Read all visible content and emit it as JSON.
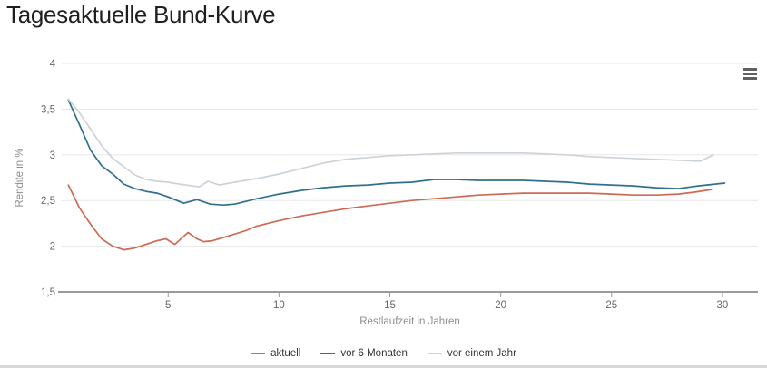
{
  "page": {
    "title": "Tagesaktuelle Bund-Kurve"
  },
  "icons": {
    "context_menu": "hamburger-icon"
  },
  "colors": {
    "title_text": "#1f1f1f",
    "grid": "#e7e7e7",
    "axis_line": "#9b9b9b",
    "tick_text": "#666666",
    "axis_title_text": "#8d8d8d",
    "legend_text": "#333333",
    "menu_icon": "#616161",
    "divider": "#d8d8d8"
  },
  "chart_data": {
    "type": "line",
    "title": "",
    "xlabel": "Restlaufzeit in Jahren",
    "ylabel": "Rendite in %",
    "xlim": [
      0.2,
      31.6
    ],
    "ylim": [
      1.5,
      4
    ],
    "x_ticks": [
      5,
      10,
      15,
      20,
      25,
      30
    ],
    "x_tick_labels": [
      "5",
      "10",
      "15",
      "20",
      "25",
      "30"
    ],
    "y_ticks": [
      1.5,
      2,
      2.5,
      3,
      3.5,
      4
    ],
    "y_tick_labels": [
      "1,5",
      "2",
      "2,5",
      "3",
      "3,5",
      "4"
    ],
    "grid": "horizontal",
    "legend_position": "bottom",
    "series": [
      {
        "name": "aktuell",
        "color": "#ce6a53",
        "x": [
          0.5,
          1,
          1.5,
          2,
          2.5,
          3,
          3.5,
          4,
          4.5,
          4.9,
          5.3,
          5.9,
          6.3,
          6.6,
          7,
          7.7,
          8.5,
          9,
          10,
          11,
          12,
          13,
          14,
          15,
          16,
          17,
          18,
          19,
          20,
          21,
          22,
          23,
          24,
          25,
          26,
          27,
          28,
          28.7,
          29.5
        ],
        "y": [
          2.67,
          2.42,
          2.24,
          2.08,
          2.0,
          1.96,
          1.98,
          2.02,
          2.06,
          2.08,
          2.02,
          2.15,
          2.08,
          2.05,
          2.06,
          2.11,
          2.17,
          2.22,
          2.28,
          2.33,
          2.37,
          2.41,
          2.44,
          2.47,
          2.5,
          2.52,
          2.54,
          2.56,
          2.57,
          2.58,
          2.58,
          2.58,
          2.58,
          2.57,
          2.56,
          2.56,
          2.57,
          2.59,
          2.62
        ]
      },
      {
        "name": "vor 6 Monaten",
        "color": "#30708f",
        "x": [
          0.5,
          1,
          1.5,
          2,
          2.5,
          3,
          3.5,
          4,
          4.5,
          5,
          5.7,
          6.3,
          6.9,
          7.5,
          8,
          9,
          10,
          11,
          12,
          13,
          14,
          15,
          16,
          17,
          18,
          19,
          20,
          21,
          22,
          23,
          24,
          25,
          26,
          27,
          28,
          28.9,
          30.1
        ],
        "y": [
          3.6,
          3.33,
          3.05,
          2.88,
          2.79,
          2.68,
          2.63,
          2.6,
          2.58,
          2.54,
          2.47,
          2.51,
          2.46,
          2.45,
          2.46,
          2.52,
          2.57,
          2.61,
          2.64,
          2.66,
          2.67,
          2.69,
          2.7,
          2.73,
          2.73,
          2.72,
          2.72,
          2.72,
          2.71,
          2.7,
          2.68,
          2.67,
          2.66,
          2.64,
          2.63,
          2.66,
          2.69
        ]
      },
      {
        "name": "vor einem Jahr",
        "color": "#ccd3d9",
        "x": [
          0.5,
          1,
          1.5,
          2,
          2.5,
          3,
          3.5,
          4,
          4.5,
          5,
          5.5,
          6.4,
          6.8,
          7.3,
          8,
          9,
          10,
          11,
          12,
          13,
          14,
          15,
          16,
          17,
          18,
          19,
          20,
          21,
          22,
          23,
          24,
          25,
          26,
          27,
          28,
          29,
          29.6
        ],
        "y": [
          3.61,
          3.46,
          3.28,
          3.1,
          2.96,
          2.87,
          2.78,
          2.73,
          2.71,
          2.7,
          2.68,
          2.65,
          2.71,
          2.67,
          2.7,
          2.74,
          2.79,
          2.85,
          2.91,
          2.95,
          2.97,
          2.99,
          3.0,
          3.01,
          3.02,
          3.02,
          3.02,
          3.02,
          3.01,
          3.0,
          2.98,
          2.97,
          2.96,
          2.95,
          2.94,
          2.93,
          3.0
        ]
      }
    ]
  }
}
